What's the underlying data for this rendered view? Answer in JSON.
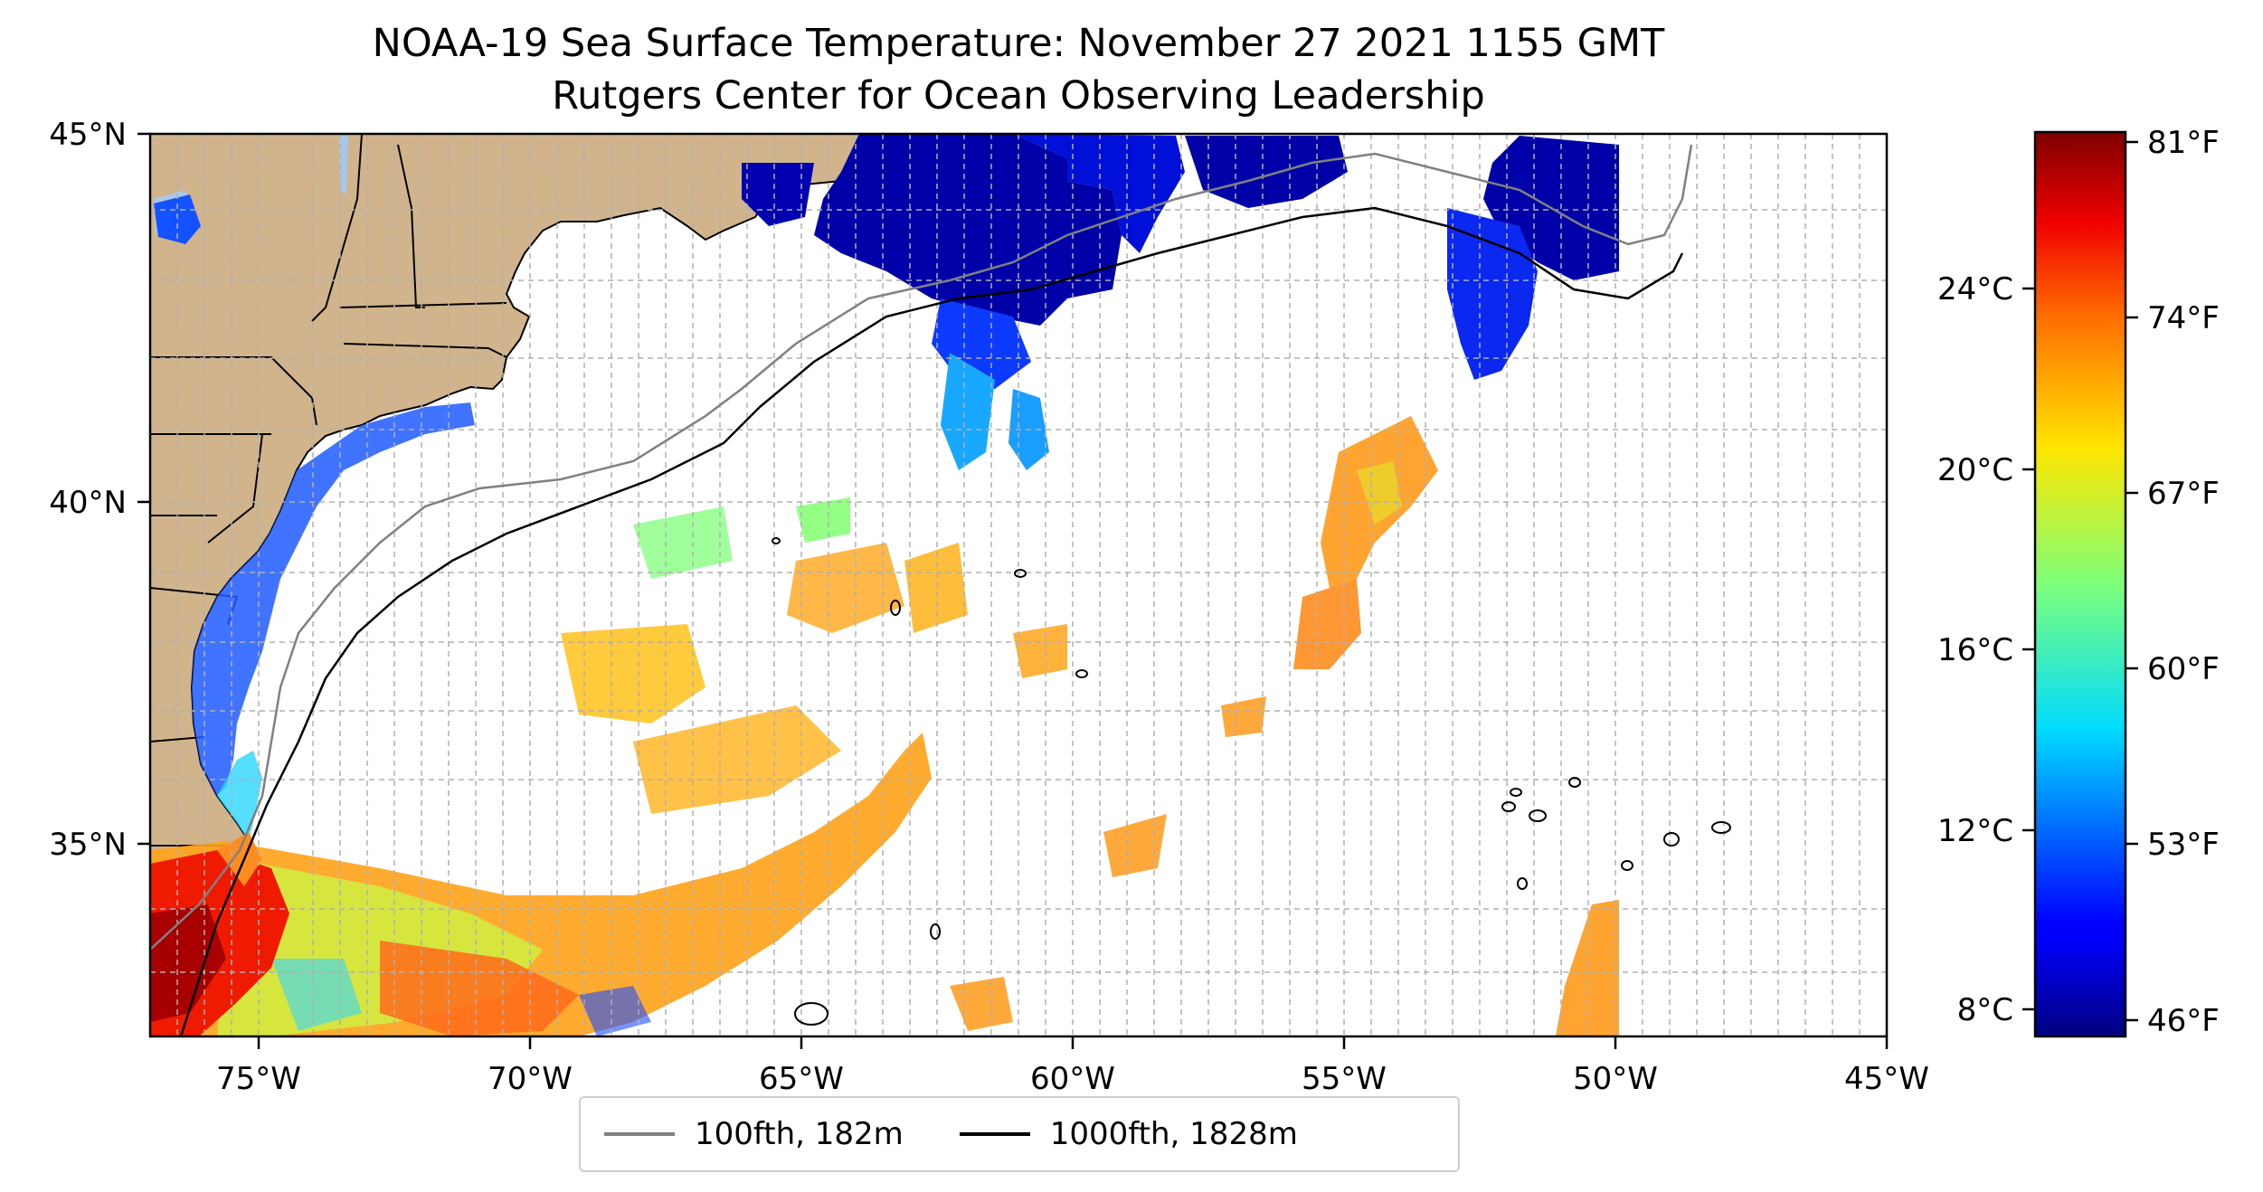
{
  "title": {
    "line1": "NOAA-19 Sea Surface Temperature: November 27 2021 1155 GMT",
    "line2": "Rutgers Center for Ocean Observing Leadership"
  },
  "map": {
    "lon_range": [
      -77,
      -45
    ],
    "lat_range": [
      32.2,
      45
    ],
    "x_tick_labels": [
      "75°W",
      "70°W",
      "65°W",
      "60°W",
      "55°W",
      "50°W",
      "45°W"
    ],
    "x_tick_values": [
      -75,
      -70,
      -65,
      -60,
      -55,
      -50,
      -45
    ],
    "y_tick_labels": [
      "45°N",
      "40°N",
      "35°N"
    ],
    "y_tick_values": [
      45,
      40,
      35
    ],
    "gridlines": true,
    "land_color": "#d2b48c",
    "lake_color": "#a6c8ea",
    "isobath_100_color": "#808080",
    "isobath_1000_color": "#000000"
  },
  "colorbar": {
    "colormap": "jet",
    "celsius_labels": [
      "24°C",
      "20°C",
      "16°C",
      "12°C",
      "8°C"
    ],
    "celsius_values": [
      24,
      20,
      16,
      12,
      8
    ],
    "fahrenheit_labels": [
      "81°F",
      "74°F",
      "67°F",
      "60°F",
      "53°F",
      "46°F"
    ],
    "fahrenheit_values": [
      81,
      74,
      67,
      60,
      53,
      46
    ]
  },
  "legend": {
    "items": [
      {
        "label": "100fth, 182m",
        "color": "#808080"
      },
      {
        "label": "1000fth, 1828m",
        "color": "#000000"
      }
    ]
  }
}
